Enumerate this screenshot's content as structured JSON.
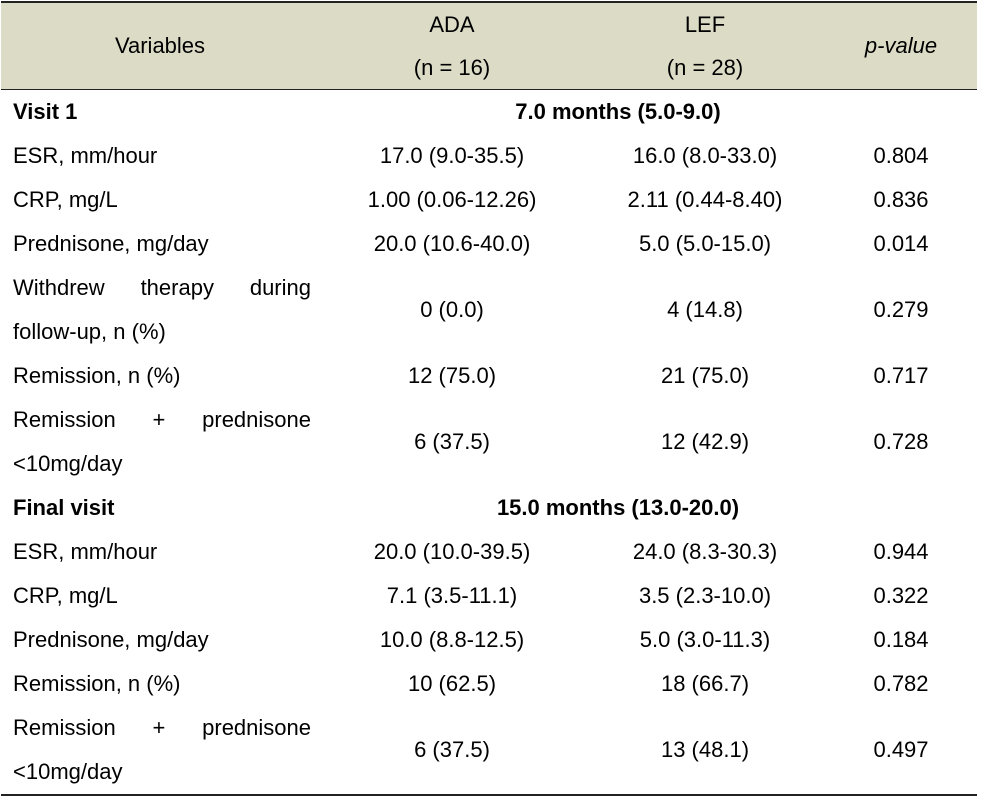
{
  "table": {
    "header": {
      "variables": "Variables",
      "ada": "ADA",
      "ada_n": "(n = 16)",
      "lef": "LEF",
      "lef_n": "(n = 28)",
      "pvalue": "p-value"
    },
    "visit1": {
      "label": "Visit 1",
      "duration": "7.0 months (5.0-9.0)",
      "rows": [
        {
          "label": "ESR, mm/hour",
          "ada": "17.0 (9.0-35.5)",
          "lef": "16.0 (8.0-33.0)",
          "p": "0.804"
        },
        {
          "label": "CRP, mg/L",
          "ada": "1.00 (0.06-12.26)",
          "lef": "2.11 (0.44-8.40)",
          "p": "0.836"
        },
        {
          "label": "Prednisone, mg/day",
          "ada": "20.0 (10.6-40.0)",
          "lef": "5.0 (5.0-15.0)",
          "p": "0.014"
        },
        {
          "label_line1": "Withdrew therapy during",
          "label_line2": "follow-up, n (%)",
          "ada": "0 (0.0)",
          "lef": "4 (14.8)",
          "p": "0.279"
        },
        {
          "label": "Remission, n (%)",
          "ada": "12 (75.0)",
          "lef": "21 (75.0)",
          "p": "0.717"
        },
        {
          "label_line1": "Remission + prednisone",
          "label_line2": "<10mg/day",
          "ada": "6 (37.5)",
          "lef": "12 (42.9)",
          "p": "0.728"
        }
      ]
    },
    "final": {
      "label": "Final visit",
      "duration": "15.0 months (13.0-20.0)",
      "rows": [
        {
          "label": "ESR, mm/hour",
          "ada": "20.0 (10.0-39.5)",
          "lef": "24.0 (8.3-30.3)",
          "p": "0.944"
        },
        {
          "label": "CRP, mg/L",
          "ada": "7.1 (3.5-11.1)",
          "lef": "3.5 (2.3-10.0)",
          "p": "0.322"
        },
        {
          "label": "Prednisone, mg/day",
          "ada": "10.0 (8.8-12.5)",
          "lef": "5.0 (3.0-11.3)",
          "p": "0.184"
        },
        {
          "label": "Remission, n (%)",
          "ada": "10 (62.5)",
          "lef": "18 (66.7)",
          "p": "0.782"
        },
        {
          "label_line1": "Remission + prednisone",
          "label_line2": "<10mg/day",
          "ada": "6 (37.5)",
          "lef": "13 (48.1)",
          "p": "0.497"
        }
      ]
    }
  },
  "colors": {
    "header_bg": "#dcdbc6",
    "rule": "#222222",
    "text": "#000000"
  }
}
